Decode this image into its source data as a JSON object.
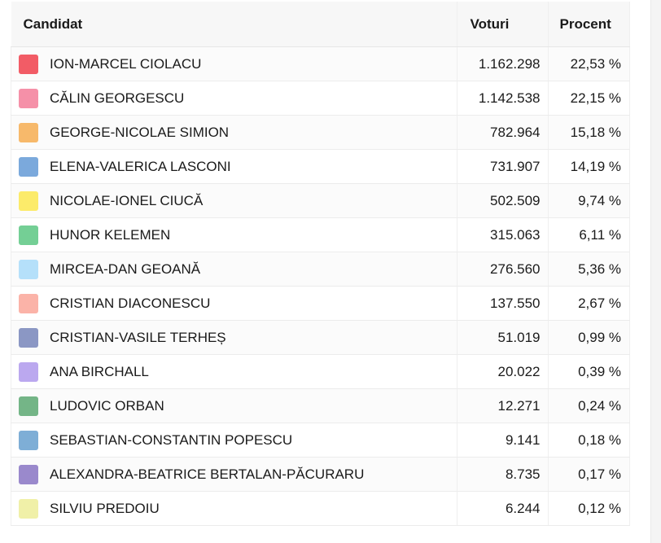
{
  "table": {
    "headers": {
      "candidate": "Candidat",
      "votes": "Voturi",
      "percent": "Procent"
    },
    "rows": [
      {
        "name": "ION-MARCEL CIOLACU",
        "votes": "1.162.298",
        "percent": "22,53 %",
        "color": "#f25c66"
      },
      {
        "name": "CĂLIN GEORGESCU",
        "votes": "1.142.538",
        "percent": "22,15 %",
        "color": "#f590a8"
      },
      {
        "name": "GEORGE-NICOLAE SIMION",
        "votes": "782.964",
        "percent": "15,18 %",
        "color": "#f7b96b"
      },
      {
        "name": "ELENA-VALERICA LASCONI",
        "votes": "731.907",
        "percent": "14,19 %",
        "color": "#7ba9dc"
      },
      {
        "name": "NICOLAE-IONEL CIUCĂ",
        "votes": "502.509",
        "percent": "9,74 %",
        "color": "#fceb6a"
      },
      {
        "name": "HUNOR KELEMEN",
        "votes": "315.063",
        "percent": "6,11 %",
        "color": "#74cf95"
      },
      {
        "name": "MIRCEA-DAN GEOANĂ",
        "votes": "276.560",
        "percent": "5,36 %",
        "color": "#b5e0fa"
      },
      {
        "name": "CRISTIAN DIACONESCU",
        "votes": "137.550",
        "percent": "2,67 %",
        "color": "#fbb3a8"
      },
      {
        "name": "CRISTIAN-VASILE TERHEȘ",
        "votes": "51.019",
        "percent": "0,99 %",
        "color": "#8b97c4"
      },
      {
        "name": "ANA BIRCHALL",
        "votes": "20.022",
        "percent": "0,39 %",
        "color": "#bba8ef"
      },
      {
        "name": "LUDOVIC ORBAN",
        "votes": "12.271",
        "percent": "0,24 %",
        "color": "#74b587"
      },
      {
        "name": "SEBASTIAN-CONSTANTIN POPESCU",
        "votes": "9.141",
        "percent": "0,18 %",
        "color": "#7eaed6"
      },
      {
        "name": "ALEXANDRA-BEATRICE BERTALAN-PĂCURARU",
        "votes": "8.735",
        "percent": "0,17 %",
        "color": "#9a89cc"
      },
      {
        "name": "SILVIU PREDOIU",
        "votes": "6.244",
        "percent": "0,12 %",
        "color": "#f0f0a8"
      }
    ]
  }
}
